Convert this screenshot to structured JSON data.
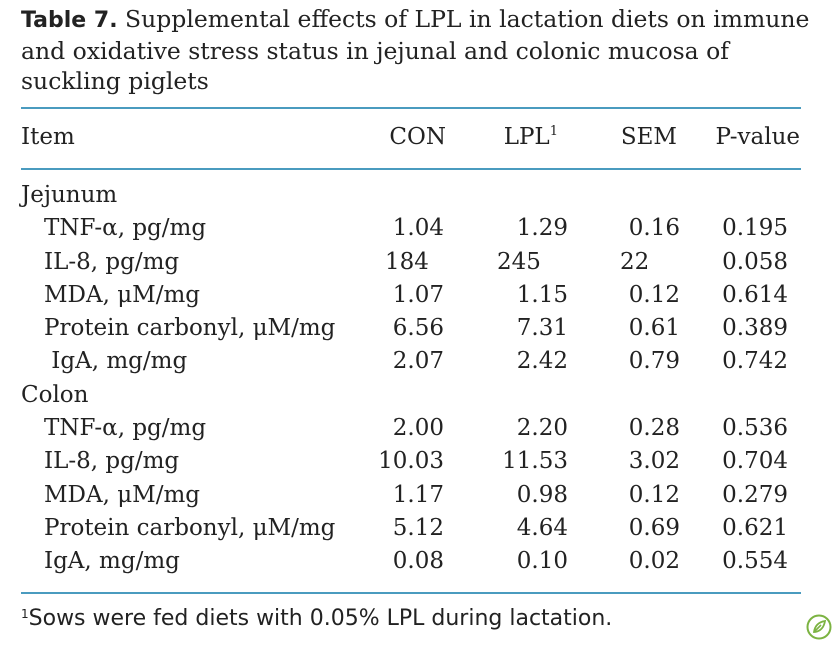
{
  "caption": {
    "label": "Table 7.",
    "text": " Supplemental effects of LPL in lactation diets on immune and oxidative stress status in jejunal and colonic mucosa of suckling piglets"
  },
  "header": {
    "item": "Item",
    "con": "CON",
    "lpl": "LPL",
    "lpl_sup": "1",
    "sem": "SEM",
    "p": "P-value"
  },
  "sections": [
    {
      "name": "Jejunum",
      "rows": [
        {
          "item": "TNF-α, pg/mg",
          "con": "1.04",
          "lpl": "1.29",
          "sem": "0.16",
          "p": "0.195"
        },
        {
          "item": "IL-8, pg/mg",
          "con": "184",
          "lpl": "245",
          "sem": "22",
          "p": "0.058"
        },
        {
          "item": "MDA, μM/mg",
          "con": "1.07",
          "lpl": "1.15",
          "sem": "0.12",
          "p": "0.614"
        },
        {
          "item": "Protein carbonyl, μM/mg",
          "con": "6.56",
          "lpl": "7.31",
          "sem": "0.61",
          "p": "0.389"
        },
        {
          "item": " IgA, mg/mg",
          "con": "2.07",
          "lpl": "2.42",
          "sem": "0.79",
          "p": "0.742"
        }
      ]
    },
    {
      "name": "Colon",
      "rows": [
        {
          "item": "TNF-α, pg/mg",
          "con": "2.00",
          "lpl": "2.20",
          "sem": "0.28",
          "p": "0.536"
        },
        {
          "item": "IL-8, pg/mg",
          "con": "10.03",
          "lpl": "11.53",
          "sem": "3.02",
          "p": "0.704"
        },
        {
          "item": "MDA, μM/mg",
          "con": "1.17",
          "lpl": "0.98",
          "sem": "0.12",
          "p": "0.279"
        },
        {
          "item": "Protein carbonyl, μM/mg",
          "con": "5.12",
          "lpl": "4.64",
          "sem": "0.69",
          "p": "0.621"
        },
        {
          "item": "IgA, mg/mg",
          "con": "0.08",
          "lpl": "0.10",
          "sem": "0.02",
          "p": "0.554"
        }
      ]
    }
  ],
  "footnote": {
    "sup": "1",
    "text": "Sows were fed diets with 0.05% LPL during lactation."
  },
  "colors": {
    "rule": "#4a9bbf",
    "logo": "#7cb342"
  },
  "icons": {
    "corner_logo": "leaf-logo-icon"
  }
}
